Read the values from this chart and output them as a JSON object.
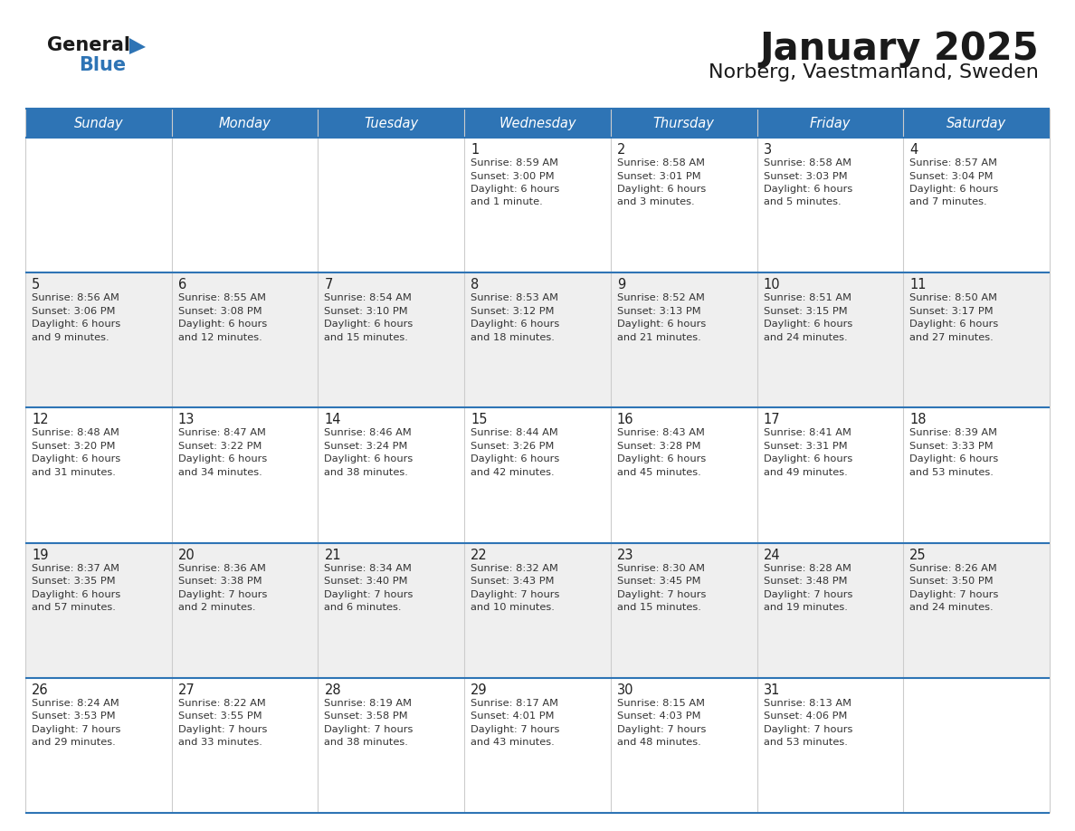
{
  "title": "January 2025",
  "subtitle": "Norberg, Vaestmanland, Sweden",
  "header_bg": "#2E74B5",
  "header_text_color": "#FFFFFF",
  "day_names": [
    "Sunday",
    "Monday",
    "Tuesday",
    "Wednesday",
    "Thursday",
    "Friday",
    "Saturday"
  ],
  "alt_row_bg": "#EFEFEF",
  "normal_row_bg": "#FFFFFF",
  "cell_text_color": "#333333",
  "day_num_color": "#222222",
  "logo_general_color": "#1A1A1A",
  "logo_blue_color": "#2E74B5",
  "row_divider_color": "#2E74B5",
  "col_divider_color": "#CCCCCC",
  "calendar": [
    [
      {
        "day": "",
        "info": ""
      },
      {
        "day": "",
        "info": ""
      },
      {
        "day": "",
        "info": ""
      },
      {
        "day": "1",
        "info": "Sunrise: 8:59 AM\nSunset: 3:00 PM\nDaylight: 6 hours\nand 1 minute."
      },
      {
        "day": "2",
        "info": "Sunrise: 8:58 AM\nSunset: 3:01 PM\nDaylight: 6 hours\nand 3 minutes."
      },
      {
        "day": "3",
        "info": "Sunrise: 8:58 AM\nSunset: 3:03 PM\nDaylight: 6 hours\nand 5 minutes."
      },
      {
        "day": "4",
        "info": "Sunrise: 8:57 AM\nSunset: 3:04 PM\nDaylight: 6 hours\nand 7 minutes."
      }
    ],
    [
      {
        "day": "5",
        "info": "Sunrise: 8:56 AM\nSunset: 3:06 PM\nDaylight: 6 hours\nand 9 minutes."
      },
      {
        "day": "6",
        "info": "Sunrise: 8:55 AM\nSunset: 3:08 PM\nDaylight: 6 hours\nand 12 minutes."
      },
      {
        "day": "7",
        "info": "Sunrise: 8:54 AM\nSunset: 3:10 PM\nDaylight: 6 hours\nand 15 minutes."
      },
      {
        "day": "8",
        "info": "Sunrise: 8:53 AM\nSunset: 3:12 PM\nDaylight: 6 hours\nand 18 minutes."
      },
      {
        "day": "9",
        "info": "Sunrise: 8:52 AM\nSunset: 3:13 PM\nDaylight: 6 hours\nand 21 minutes."
      },
      {
        "day": "10",
        "info": "Sunrise: 8:51 AM\nSunset: 3:15 PM\nDaylight: 6 hours\nand 24 minutes."
      },
      {
        "day": "11",
        "info": "Sunrise: 8:50 AM\nSunset: 3:17 PM\nDaylight: 6 hours\nand 27 minutes."
      }
    ],
    [
      {
        "day": "12",
        "info": "Sunrise: 8:48 AM\nSunset: 3:20 PM\nDaylight: 6 hours\nand 31 minutes."
      },
      {
        "day": "13",
        "info": "Sunrise: 8:47 AM\nSunset: 3:22 PM\nDaylight: 6 hours\nand 34 minutes."
      },
      {
        "day": "14",
        "info": "Sunrise: 8:46 AM\nSunset: 3:24 PM\nDaylight: 6 hours\nand 38 minutes."
      },
      {
        "day": "15",
        "info": "Sunrise: 8:44 AM\nSunset: 3:26 PM\nDaylight: 6 hours\nand 42 minutes."
      },
      {
        "day": "16",
        "info": "Sunrise: 8:43 AM\nSunset: 3:28 PM\nDaylight: 6 hours\nand 45 minutes."
      },
      {
        "day": "17",
        "info": "Sunrise: 8:41 AM\nSunset: 3:31 PM\nDaylight: 6 hours\nand 49 minutes."
      },
      {
        "day": "18",
        "info": "Sunrise: 8:39 AM\nSunset: 3:33 PM\nDaylight: 6 hours\nand 53 minutes."
      }
    ],
    [
      {
        "day": "19",
        "info": "Sunrise: 8:37 AM\nSunset: 3:35 PM\nDaylight: 6 hours\nand 57 minutes."
      },
      {
        "day": "20",
        "info": "Sunrise: 8:36 AM\nSunset: 3:38 PM\nDaylight: 7 hours\nand 2 minutes."
      },
      {
        "day": "21",
        "info": "Sunrise: 8:34 AM\nSunset: 3:40 PM\nDaylight: 7 hours\nand 6 minutes."
      },
      {
        "day": "22",
        "info": "Sunrise: 8:32 AM\nSunset: 3:43 PM\nDaylight: 7 hours\nand 10 minutes."
      },
      {
        "day": "23",
        "info": "Sunrise: 8:30 AM\nSunset: 3:45 PM\nDaylight: 7 hours\nand 15 minutes."
      },
      {
        "day": "24",
        "info": "Sunrise: 8:28 AM\nSunset: 3:48 PM\nDaylight: 7 hours\nand 19 minutes."
      },
      {
        "day": "25",
        "info": "Sunrise: 8:26 AM\nSunset: 3:50 PM\nDaylight: 7 hours\nand 24 minutes."
      }
    ],
    [
      {
        "day": "26",
        "info": "Sunrise: 8:24 AM\nSunset: 3:53 PM\nDaylight: 7 hours\nand 29 minutes."
      },
      {
        "day": "27",
        "info": "Sunrise: 8:22 AM\nSunset: 3:55 PM\nDaylight: 7 hours\nand 33 minutes."
      },
      {
        "day": "28",
        "info": "Sunrise: 8:19 AM\nSunset: 3:58 PM\nDaylight: 7 hours\nand 38 minutes."
      },
      {
        "day": "29",
        "info": "Sunrise: 8:17 AM\nSunset: 4:01 PM\nDaylight: 7 hours\nand 43 minutes."
      },
      {
        "day": "30",
        "info": "Sunrise: 8:15 AM\nSunset: 4:03 PM\nDaylight: 7 hours\nand 48 minutes."
      },
      {
        "day": "31",
        "info": "Sunrise: 8:13 AM\nSunset: 4:06 PM\nDaylight: 7 hours\nand 53 minutes."
      },
      {
        "day": "",
        "info": ""
      }
    ]
  ]
}
